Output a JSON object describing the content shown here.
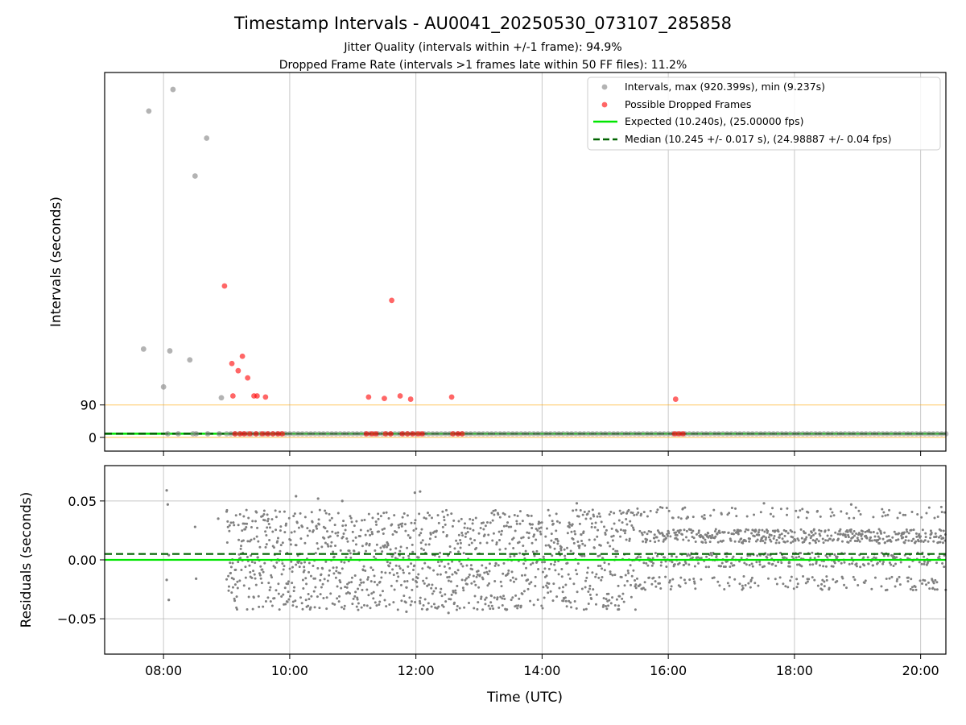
{
  "title": "Timestamp Intervals - AU0041_20250530_073107_285858",
  "subtitle_lines": [
    "Jitter Quality (intervals within +/-1 frame): 94.9%",
    "Dropped Frame Rate (intervals >1 frames late within 50 FF files): 11.2%"
  ],
  "colors": {
    "intervals": "#808080",
    "dropped": "#ff0000",
    "expected": "#00e600",
    "median": "#006400",
    "threshold": "#ffa500",
    "grid": "#b0b0b0"
  },
  "chart_data": [
    {
      "type": "scatter",
      "panel": "top",
      "ylabel": "Intervals (seconds)",
      "xlim": [
        "07:04",
        "20:24"
      ],
      "ylim": [
        -38,
        1012
      ],
      "yticks": [
        0,
        90
      ],
      "yticklabels": [
        "0",
        "90"
      ],
      "grid": "x",
      "legend_position": "top-right",
      "legend": [
        {
          "label": "Intervals, max (920.399s), min (9.237s)",
          "kind": "marker",
          "color": "#808080"
        },
        {
          "label": "Possible Dropped Frames",
          "kind": "marker",
          "color": "#ff0000"
        },
        {
          "label": "Expected (10.240s), (25.00000 fps)",
          "kind": "solid-line",
          "color": "#00e600"
        },
        {
          "label": "Median (10.245 +/- 0.017 s), (24.98887 +/- 0.04 fps)",
          "kind": "dashed-line",
          "color": "#006400"
        }
      ],
      "series": [
        {
          "name": "Intervals, max (920.399s), min (9.237s)",
          "color": "#808080",
          "points": [
            [
              "07:46",
              905
            ],
            [
              "08:09",
              965
            ],
            [
              "08:41",
              830
            ],
            [
              "08:30",
              725
            ],
            [
              "07:41",
              245
            ],
            [
              "08:06",
              240
            ],
            [
              "08:25",
              215
            ],
            [
              "08:00",
              140
            ],
            [
              "08:55",
              110
            ],
            [
              "08:04",
              10
            ],
            [
              "08:14",
              10
            ],
            [
              "08:28",
              10
            ],
            [
              "08:31",
              10
            ],
            [
              "08:42",
              10
            ],
            [
              "08:53",
              10
            ]
          ]
        },
        {
          "name": "Possible Dropped Frames",
          "color": "#ff0000",
          "points": [
            [
              "08:58",
              420
            ],
            [
              "09:05",
              205
            ],
            [
              "09:11",
              185
            ],
            [
              "09:15",
              225
            ],
            [
              "09:20",
              165
            ],
            [
              "09:06",
              115
            ],
            [
              "09:26",
              115
            ],
            [
              "09:29",
              115
            ],
            [
              "09:37",
              112
            ],
            [
              "11:15",
              112
            ],
            [
              "11:30",
              108
            ],
            [
              "11:37",
              380
            ],
            [
              "11:45",
              115
            ],
            [
              "11:55",
              106
            ],
            [
              "12:34",
              112
            ],
            [
              "16:07",
              106
            ],
            [
              "09:08",
              10
            ],
            [
              "09:13",
              10
            ],
            [
              "09:17",
              10
            ],
            [
              "09:22",
              10
            ],
            [
              "09:28",
              10
            ],
            [
              "09:34",
              10
            ],
            [
              "09:39",
              10
            ],
            [
              "09:44",
              10
            ],
            [
              "09:49",
              10
            ],
            [
              "09:53",
              10
            ],
            [
              "11:13",
              10
            ],
            [
              "11:18",
              10
            ],
            [
              "11:22",
              10
            ],
            [
              "11:31",
              10
            ],
            [
              "11:36",
              10
            ],
            [
              "11:47",
              10
            ],
            [
              "11:52",
              10
            ],
            [
              "11:57",
              10
            ],
            [
              "12:02",
              10
            ],
            [
              "12:06",
              10
            ],
            [
              "12:35",
              10
            ],
            [
              "12:40",
              10
            ],
            [
              "12:44",
              10
            ],
            [
              "16:06",
              10
            ],
            [
              "16:10",
              10
            ],
            [
              "16:14",
              10
            ]
          ]
        },
        {
          "name": "Expected (10.240s), (25.00000 fps)",
          "kind": "hline",
          "y": 10.24,
          "color": "#00e600"
        },
        {
          "name": "Median (10.245 +/- 0.017 s), (24.98887 +/- 0.04 fps)",
          "kind": "hline",
          "y": 10.245,
          "color": "#006400"
        },
        {
          "kind": "hline",
          "y": 90,
          "color": "#ffa500"
        },
        {
          "kind": "hline",
          "y": 0,
          "color": "#ffa500"
        }
      ]
    },
    {
      "type": "scatter",
      "panel": "bottom",
      "xlabel": "Time (UTC)",
      "ylabel": "Residuals (seconds)",
      "xlim": [
        "07:04",
        "20:24"
      ],
      "ylim": [
        -0.08,
        0.08
      ],
      "xticks": [
        "08:00",
        "10:00",
        "12:00",
        "14:00",
        "16:00",
        "18:00",
        "20:00"
      ],
      "yticks": [
        -0.05,
        0.0,
        0.05
      ],
      "yticklabels": [
        "−0.05",
        "0.00",
        "0.05"
      ],
      "grid": "both",
      "series": [
        {
          "name": "residuals",
          "color": "#808080",
          "density_note": "scattered points spanning approx -0.045 to 0.06 s",
          "points": [
            [
              "08:03",
              0.059
            ],
            [
              "08:04",
              0.047
            ],
            [
              "08:05",
              -0.034
            ],
            [
              "08:03",
              -0.017
            ],
            [
              "08:05",
              0.004
            ],
            [
              "08:30",
              0.028
            ],
            [
              "08:31",
              -0.016
            ],
            [
              "08:52",
              0.035
            ],
            [
              "09:00",
              0.041
            ],
            [
              "11:59",
              0.057
            ],
            [
              "12:04",
              0.058
            ],
            [
              "12:31",
              -0.045
            ],
            [
              "11:51",
              -0.044
            ],
            [
              "15:13",
              -0.042
            ],
            [
              "10:06",
              0.054
            ],
            [
              "10:27",
              0.052
            ],
            [
              "10:50",
              0.05
            ],
            [
              "17:31",
              0.048
            ],
            [
              "14:33",
              0.048
            ],
            [
              "18:54",
              0.047
            ]
          ]
        },
        {
          "name": "median",
          "kind": "hline",
          "y": 0.005,
          "color": "#006400"
        },
        {
          "name": "expected",
          "kind": "hline",
          "y": 0.0,
          "color": "#00e600"
        }
      ]
    }
  ]
}
